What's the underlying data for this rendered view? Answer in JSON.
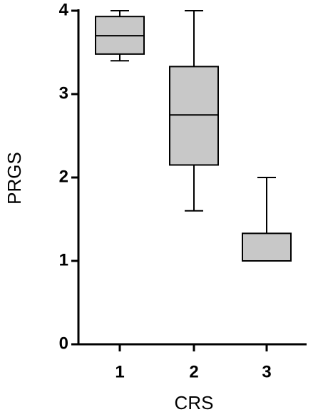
{
  "chart_data": {
    "type": "box",
    "xlabel": "CRS",
    "ylabel": "PRGS",
    "categories": [
      "1",
      "2",
      "3"
    ],
    "series": [
      {
        "color": "#c8c8c8",
        "boxes": [
          {
            "min": 3.4,
            "q1": 3.48,
            "median": 3.7,
            "q3": 3.93,
            "max": 4.0
          },
          {
            "min": 1.6,
            "q1": 2.15,
            "median": 2.75,
            "q3": 3.33,
            "max": 4.0
          },
          {
            "min": 1.0,
            "q1": 1.0,
            "median": 1.0,
            "q3": 1.33,
            "max": 2.0
          }
        ]
      }
    ],
    "ylim": [
      0,
      4
    ],
    "yticks": [
      0,
      1,
      2,
      3,
      4
    ]
  }
}
